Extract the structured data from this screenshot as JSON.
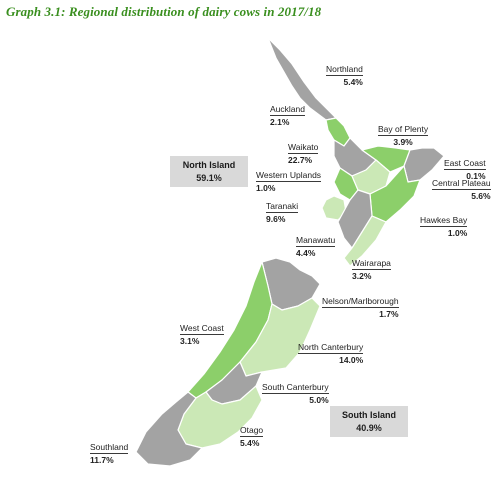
{
  "title": "Graph 3.1: Regional distribution of dairy cows in 2017/18",
  "colors": {
    "high_share": "#8ccf6a",
    "mid_share": "#cbe8b6",
    "low_share": "#a3a3a3",
    "summary_box": "#d9d9d9",
    "title": "#3a8f1f"
  },
  "islands": {
    "north": {
      "name": "North Island",
      "value": "59.1%"
    },
    "south": {
      "name": "South Island",
      "value": "40.9%"
    }
  },
  "regions": [
    {
      "key": "northland",
      "name": "Northland",
      "value": "5.4%"
    },
    {
      "key": "auckland",
      "name": "Auckland",
      "value": "2.1%"
    },
    {
      "key": "bay_of_plenty",
      "name": "Bay of Plenty",
      "value": "3.9%"
    },
    {
      "key": "waikato",
      "name": "Waikato",
      "value": "22.7%"
    },
    {
      "key": "east_coast",
      "name": "East Coast",
      "value": "0.1%"
    },
    {
      "key": "western_uplands",
      "name": "Western Uplands",
      "value": "1.0%"
    },
    {
      "key": "central_plateau",
      "name": "Central Plateau",
      "value": "5.6%"
    },
    {
      "key": "taranaki",
      "name": "Taranaki",
      "value": "9.6%"
    },
    {
      "key": "hawkes_bay",
      "name": "Hawkes Bay",
      "value": "1.0%"
    },
    {
      "key": "manawatu",
      "name": "Manawatu",
      "value": "4.4%"
    },
    {
      "key": "wairarapa",
      "name": "Wairarapa",
      "value": "3.2%"
    },
    {
      "key": "nelson_marlborough",
      "name": "Nelson/Marlborough",
      "value": "1.7%"
    },
    {
      "key": "west_coast",
      "name": "West Coast",
      "value": "3.1%"
    },
    {
      "key": "north_canterbury",
      "name": "North Canterbury",
      "value": "14.0%"
    },
    {
      "key": "south_canterbury",
      "name": "South Canterbury",
      "value": "5.0%"
    },
    {
      "key": "otago",
      "name": "Otago",
      "value": "5.4%"
    },
    {
      "key": "southland",
      "name": "Southland",
      "value": "11.7%"
    }
  ]
}
